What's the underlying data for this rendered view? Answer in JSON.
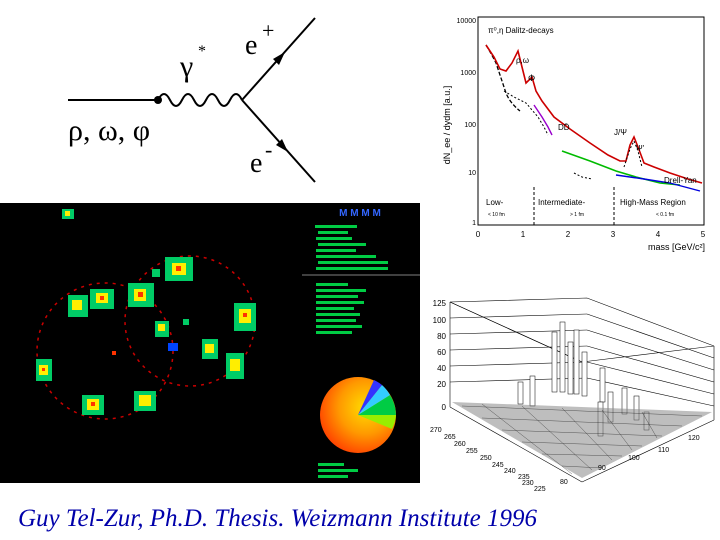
{
  "feynman": {
    "particles": "ρ, ω, φ",
    "photon": "γ",
    "photon_star": "*",
    "positron": "e",
    "positron_charge": "+",
    "electron": "e",
    "electron_charge": "-"
  },
  "dilepton": {
    "ylabel": "dN_ee / dydm [a.u.]",
    "xlabel": "mass [GeV/c²]",
    "y_ticks": [
      "10000",
      "1000",
      "100",
      "10",
      "1"
    ],
    "x_ticks": [
      "0",
      "1",
      "2",
      "3",
      "4",
      "5"
    ],
    "dalitz_label": "π⁰,η Dalitz-decays",
    "rho_omega": "ρ,ω",
    "phi": "Φ",
    "ddbar": "DD̄",
    "jpsi": "J/Ψ",
    "psiprime": "Ψ'",
    "drell_yan": "Drell-Yan",
    "region_low": "Low-",
    "region_low_sub": "< 10 fm",
    "region_mid": "Intermediate-",
    "region_mid_sub": "> 1 fm",
    "region_high": "High-Mass Region",
    "region_high_sub": "< 0.1 fm"
  },
  "event_display": {
    "header": "M M M M"
  },
  "lego": {
    "z_ticks": [
      "125",
      "100",
      "80",
      "60",
      "40",
      "20",
      "0"
    ],
    "left_ticks": [
      "270",
      "265",
      "260",
      "255",
      "250",
      "245",
      "240",
      "235",
      "230",
      "225"
    ],
    "bottom_ticks": [
      "80",
      "90",
      "100",
      "110",
      "120"
    ]
  },
  "caption": "Guy Tel-Zur, Ph.D. Thesis. Weizmann Institute 1996",
  "colors": {
    "caption": "#0000aa",
    "model_curve": "#cc0000",
    "dd_curve": "#00bb00",
    "dy_curve": "#0000dd"
  }
}
